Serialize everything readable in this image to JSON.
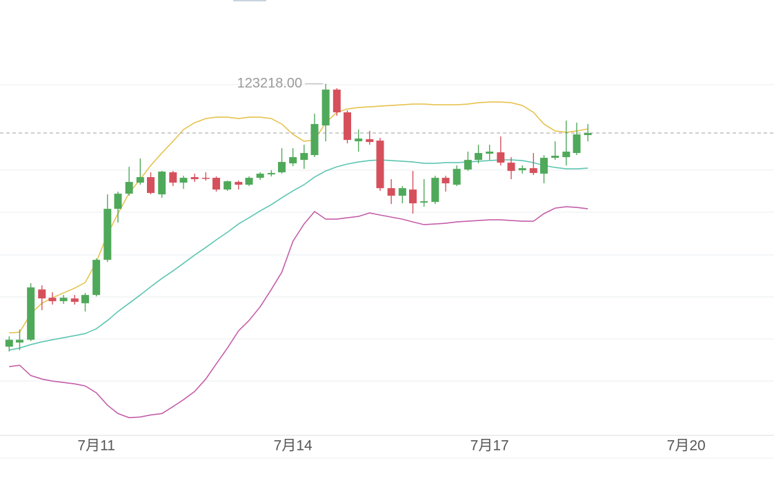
{
  "chart_data": {
    "type": "candlestick",
    "max_label": "123218.00",
    "up_color": "#4fa95a",
    "down_color": "#d6505c",
    "xlim": [
      9.53,
      21.34
    ],
    "xticks": [
      {
        "value": 11,
        "label": "7月11"
      },
      {
        "value": 14,
        "label": "7月14"
      },
      {
        "value": 17,
        "label": "7月17"
      },
      {
        "value": 20,
        "label": "7月20"
      }
    ],
    "ylim": [
      107500,
      126500
    ],
    "x": [
      9.67,
      9.83,
      10,
      10.17,
      10.33,
      10.5,
      10.67,
      10.83,
      11,
      11.17,
      11.33,
      11.5,
      11.67,
      11.83,
      12,
      12.17,
      12.33,
      12.5,
      12.67,
      12.83,
      13,
      13.17,
      13.33,
      13.5,
      13.67,
      13.83,
      14,
      14.17,
      14.33,
      14.5,
      14.67,
      14.83,
      15,
      15.17,
      15.33,
      15.5,
      15.67,
      15.83,
      16,
      16.17,
      16.33,
      16.5,
      16.67,
      16.83,
      17,
      17.17,
      17.33,
      17.5,
      17.67,
      17.83,
      18,
      18.17,
      18.33,
      18.5
    ],
    "open": [
      112919,
      113081,
      113189,
      115160,
      114836,
      114701,
      114809,
      114620,
      114944,
      116321,
      118319,
      118913,
      119345,
      119561,
      118886,
      119750,
      119345,
      119561,
      119534,
      119534,
      119075,
      119372,
      119264,
      119534,
      119669,
      119750,
      120101,
      120236,
      120425,
      121586,
      122990,
      122099,
      120965,
      121046,
      120992,
      119129,
      118832,
      119075,
      118562,
      118589,
      119534,
      119264,
      119858,
      120236,
      120479,
      120533,
      120128,
      119831,
      119912,
      119696,
      120317,
      120344,
      120506,
      121208
    ],
    "high": [
      113324,
      113594,
      115403,
      115322,
      115052,
      114944,
      114944,
      115025,
      116375,
      118886,
      118994,
      119966,
      120290,
      119750,
      119804,
      119804,
      119615,
      119696,
      119750,
      119588,
      119426,
      119426,
      119588,
      119750,
      119831,
      120695,
      120695,
      120830,
      122045,
      123218,
      123044,
      122180,
      121424,
      121370,
      121100,
      119480,
      119210,
      119804,
      119480,
      119615,
      119615,
      120020,
      120560,
      120830,
      120830,
      121154,
      120344,
      120020,
      120506,
      120425,
      120965,
      121775,
      121694,
      121640
    ],
    "low": [
      112730,
      112784,
      113135,
      114350,
      114566,
      114593,
      114566,
      114296,
      114890,
      116240,
      117779,
      118832,
      119264,
      118886,
      118751,
      119210,
      119102,
      119372,
      119426,
      118994,
      119021,
      119075,
      119210,
      119453,
      119588,
      119696,
      119993,
      119885,
      120344,
      120965,
      121964,
      120884,
      120560,
      120830,
      119021,
      118508,
      118535,
      118130,
      118400,
      118508,
      118994,
      119210,
      119804,
      120101,
      120236,
      120020,
      119480,
      119696,
      119642,
      119318,
      120236,
      120020,
      120425,
      120965
    ],
    "close": [
      113189,
      113189,
      115241,
      114809,
      114701,
      114836,
      114674,
      114944,
      116321,
      118319,
      118913,
      119372,
      119561,
      118940,
      119777,
      119345,
      119534,
      119480,
      119507,
      119075,
      119399,
      119264,
      119534,
      119696,
      119723,
      120155,
      120344,
      120506,
      121640,
      122990,
      122099,
      121019,
      121073,
      120938,
      119129,
      118832,
      119129,
      118535,
      118616,
      119534,
      119318,
      119885,
      120236,
      120506,
      120560,
      120128,
      119804,
      119912,
      119723,
      120317,
      120398,
      120560,
      121235,
      121289
    ],
    "lines": [
      {
        "color": "#e6c24e",
        "values": [
          113459,
          113486,
          114215,
          114620,
          114836,
          115025,
          115214,
          115430,
          116240,
          117320,
          118130,
          118940,
          119480,
          120020,
          120506,
          120965,
          121424,
          121694,
          121856,
          121910,
          121910,
          121856,
          121910,
          121910,
          121856,
          121640,
          121235,
          120965,
          121019,
          121694,
          122099,
          122234,
          122288,
          122315,
          122342,
          122369,
          122396,
          122423,
          122423,
          122396,
          122396,
          122396,
          122423,
          122477,
          122504,
          122504,
          122477,
          122369,
          122099,
          121640,
          121370,
          121316,
          121370,
          121451
        ]
      },
      {
        "color": "#5cc6b1",
        "values": [
          112784,
          112865,
          113000,
          113108,
          113189,
          113270,
          113351,
          113432,
          113621,
          113945,
          114296,
          114620,
          114944,
          115268,
          115592,
          115889,
          116186,
          116510,
          116807,
          117104,
          117401,
          117725,
          117968,
          118238,
          118481,
          118751,
          119021,
          119264,
          119561,
          119804,
          119966,
          120074,
          120155,
          120209,
          120236,
          120209,
          120182,
          120155,
          120101,
          120101,
          120128,
          120128,
          120155,
          120182,
          120209,
          120236,
          120236,
          120209,
          120128,
          120020,
          119939,
          119885,
          119885,
          119912
        ]
      },
      {
        "color": "#c45ea9",
        "values": [
          112136,
          112190,
          111785,
          111650,
          111569,
          111515,
          111461,
          111380,
          111110,
          110624,
          110300,
          110138,
          110165,
          110246,
          110300,
          110570,
          110840,
          111164,
          111650,
          112244,
          112865,
          113540,
          113945,
          114485,
          115160,
          115835,
          117050,
          117725,
          118211,
          117914,
          117914,
          117968,
          118022,
          118157,
          118076,
          117995,
          117914,
          117806,
          117698,
          117725,
          117752,
          117806,
          117833,
          117860,
          117887,
          117887,
          117860,
          117833,
          117833,
          118130,
          118346,
          118400,
          118373,
          118319
        ]
      }
    ]
  }
}
